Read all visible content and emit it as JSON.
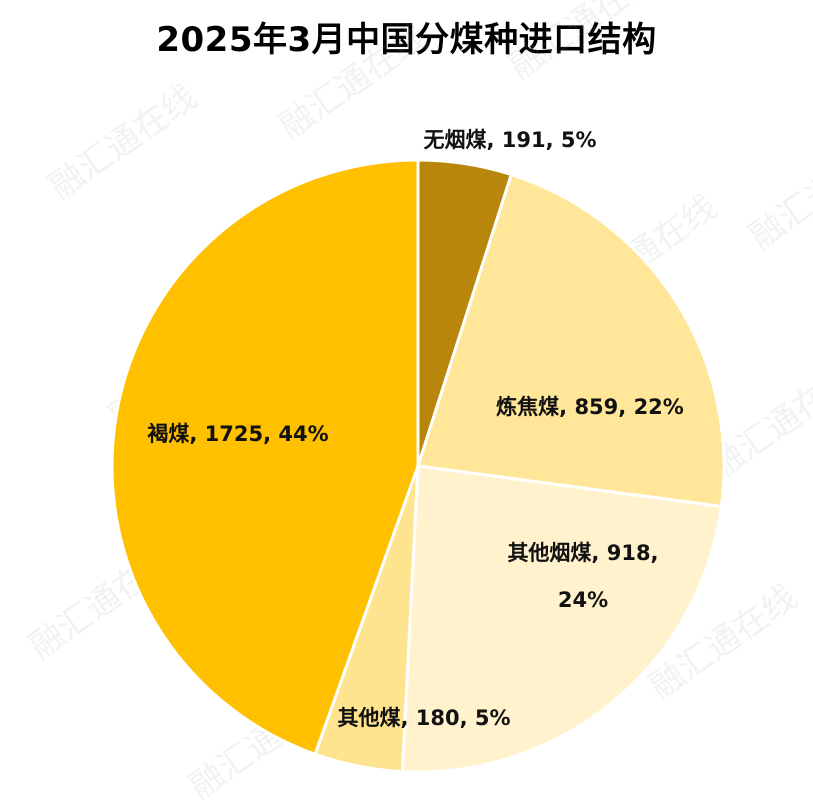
{
  "chart_data": {
    "type": "pie",
    "title": "2025年3月中国分煤种进口结构",
    "slices": [
      {
        "name": "无烟煤",
        "value": 191,
        "percent": "5%",
        "color": "#B8860B"
      },
      {
        "name": "炼焦煤",
        "value": 859,
        "percent": "22%",
        "color": "#FFE699"
      },
      {
        "name": "其他烟煤",
        "value": 918,
        "percent": "24%",
        "color": "#FFF2CC"
      },
      {
        "name": "其他煤",
        "value": 180,
        "percent": "5%",
        "color": "#FFE48F"
      },
      {
        "name": "褐煤",
        "value": 1725,
        "percent": "44%",
        "color": "#FFC000"
      }
    ],
    "labels": [
      {
        "line1": "无烟煤, 191, 5%",
        "line2": ""
      },
      {
        "line1": "炼焦煤, 859, 22%",
        "line2": ""
      },
      {
        "line1": "其他烟煤, 918,",
        "line2": "24%"
      },
      {
        "line1": "其他煤, 180, 5%",
        "line2": ""
      },
      {
        "line1": "褐煤, 1725, 44%",
        "line2": ""
      }
    ],
    "legend": "none",
    "watermark": "融汇通在线"
  }
}
